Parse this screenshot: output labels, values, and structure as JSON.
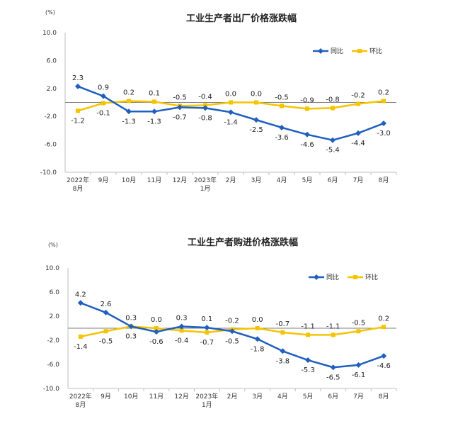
{
  "chart_data": [
    {
      "type": "line",
      "title": "工业生产者出厂价格涨跌幅",
      "unit_label": "(%)",
      "categories": [
        "2022年\n8月",
        "9月",
        "10月",
        "11月",
        "12月",
        "2023年\n1月",
        "2月",
        "3月",
        "4月",
        "5月",
        "6月",
        "7月",
        "8月"
      ],
      "ylim": [
        -10.0,
        10.0
      ],
      "yticks": [
        "10.0",
        "6.0",
        "2.0",
        "-2.0",
        "-6.0",
        "-10.0"
      ],
      "ytick_values": [
        10,
        6,
        2,
        -2,
        -6,
        -10
      ],
      "legend_position": "top-right",
      "grid": false,
      "series": [
        {
          "name": "同比",
          "color": "#1f5fbf",
          "marker": "diamond",
          "values": [
            2.3,
            0.9,
            -1.3,
            -1.3,
            -0.7,
            -0.8,
            -1.4,
            -2.5,
            -3.6,
            -4.6,
            -5.4,
            -4.4,
            -3.0
          ],
          "labels": [
            "2.3",
            "0.9",
            "-1.3",
            "-1.3",
            "-0.7",
            "-0.8",
            "-1.4",
            "-2.5",
            "-3.6",
            "-4.6",
            "-5.4",
            "-4.4",
            "-3.0"
          ]
        },
        {
          "name": "环比",
          "color": "#f5c400",
          "marker": "square",
          "values": [
            -1.2,
            -0.1,
            0.2,
            0.1,
            -0.5,
            -0.4,
            0.0,
            0.0,
            -0.5,
            -0.9,
            -0.8,
            -0.2,
            0.2
          ],
          "labels": [
            "-1.2",
            "-0.1",
            "0.2",
            "0.1",
            "-0.5",
            "-0.4",
            "0.0",
            "0.0",
            "-0.5",
            "-0.9",
            "-0.8",
            "-0.2",
            "0.2"
          ]
        }
      ]
    },
    {
      "type": "line",
      "title": "工业生产者购进价格涨跌幅",
      "unit_label": "(%)",
      "categories": [
        "2022年\n8月",
        "9月",
        "10月",
        "11月",
        "12月",
        "2023年\n1月",
        "2月",
        "3月",
        "4月",
        "5月",
        "6月",
        "7月",
        "8月"
      ],
      "ylim": [
        -10.0,
        10.0
      ],
      "yticks": [
        "10.0",
        "6.0",
        "2.0",
        "-2.0",
        "-6.0",
        "-10.0"
      ],
      "ytick_values": [
        10,
        6,
        2,
        -2,
        -6,
        -10
      ],
      "legend_position": "top-right",
      "grid": false,
      "series": [
        {
          "name": "同比",
          "color": "#1f5fbf",
          "marker": "diamond",
          "values": [
            4.2,
            2.6,
            0.3,
            -0.6,
            0.3,
            0.1,
            -0.5,
            -1.8,
            -3.8,
            -5.3,
            -6.5,
            -6.1,
            -4.6
          ],
          "labels": [
            "4.2",
            "2.6",
            "0.3",
            "-0.6",
            "0.3",
            "0.1",
            "-0.5",
            "-1.8",
            "-3.8",
            "-5.3",
            "-6.5",
            "-6.1",
            "-4.6"
          ]
        },
        {
          "name": "环比",
          "color": "#f5c400",
          "marker": "square",
          "values": [
            -1.4,
            -0.5,
            0.3,
            0.0,
            -0.4,
            -0.7,
            -0.2,
            0.0,
            -0.7,
            -1.1,
            -1.1,
            -0.5,
            0.2
          ],
          "labels": [
            "-1.4",
            "-0.5",
            "0.3",
            "0.0",
            "-0.4",
            "-0.7",
            "-0.2",
            "0.0",
            "-0.7",
            "-1.1",
            "-1.1",
            "-0.5",
            "0.2"
          ]
        }
      ]
    }
  ]
}
